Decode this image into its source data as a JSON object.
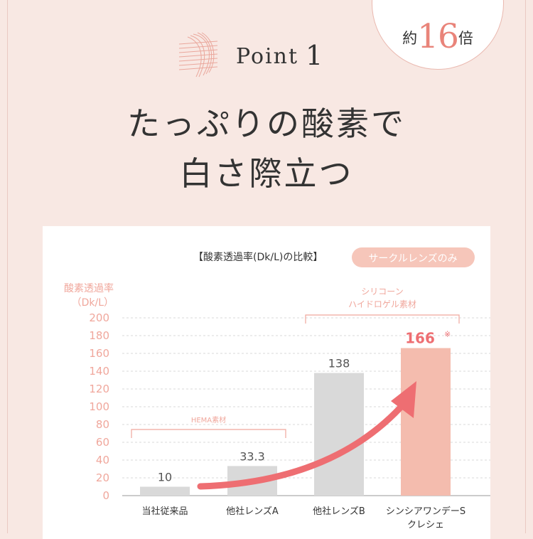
{
  "badge": {
    "prefix": "約",
    "number": "16",
    "suffix": "倍"
  },
  "point": {
    "label": "Point",
    "number": "1"
  },
  "headline": {
    "line1": "たっぷりの酸素で",
    "line2": "白さ際立つ"
  },
  "chart_data": {
    "type": "bar",
    "title": "【酸素透過率(Dk/L)の比較】",
    "tag": "サークルレンズのみ",
    "ylabel": [
      "酸素透過率",
      "（Dk/L）"
    ],
    "ylim": [
      0,
      200
    ],
    "yticks": [
      0,
      20,
      40,
      60,
      80,
      100,
      120,
      140,
      160,
      180,
      200
    ],
    "categories": [
      [
        "当社従来品"
      ],
      [
        "他社レンズA"
      ],
      [
        "他社レンズB"
      ],
      [
        "シンシアワンデーS",
        "クレシェ"
      ]
    ],
    "values": [
      10,
      33.3,
      138,
      166
    ],
    "value_labels": [
      "10",
      "33.3",
      "138",
      "166"
    ],
    "highlight_index": 3,
    "highlight_mark": "※",
    "groups": [
      {
        "label": "HEMA素材",
        "from": 0,
        "to": 1
      },
      {
        "label": [
          "シリコーン",
          "ハイドロゲル素材"
        ],
        "from": 2,
        "to": 3
      }
    ],
    "grid": true,
    "colors": {
      "bar": "#d9d9d9",
      "highlight": "#f4bcae",
      "accent": "#ee6e72",
      "axis_text": "#f0a79c",
      "dark": "#333333",
      "tag_bg": "#f6c6ba"
    }
  }
}
